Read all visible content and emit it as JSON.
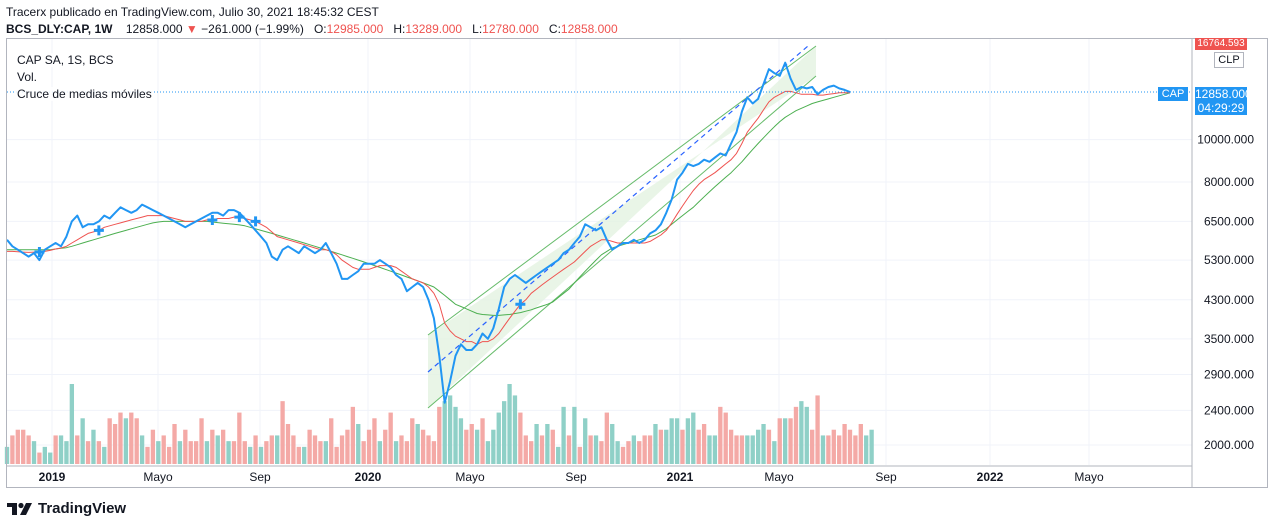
{
  "header": {
    "published": "Tracerx publicado en TradingView.com, Julio 30, 2021 18:45:32 CEST",
    "symbol": "BCS_DLY:CAP, 1W",
    "last": "12858.000",
    "arrow": "▼",
    "change": "−261.000 (−1.99%)",
    "o_label": "O:",
    "o_value": "12985.000",
    "h_label": "H:",
    "h_value": "13289.000",
    "l_label": "L:",
    "l_value": "12780.000",
    "c_label": "C:",
    "c_value": "12858.000"
  },
  "legend": {
    "line1": "CAP SA, 1S, BCS",
    "line2": "Vol.",
    "line3": "Cruce de medias móviles"
  },
  "price_scale": {
    "top_partial": "16764.593",
    "currency": "CLP",
    "price_tag_symbol": "CAP",
    "price_tag_value": "12858.000",
    "countdown": "04:29:29"
  },
  "footer": {
    "brand": "TradingView"
  },
  "colors": {
    "price": "#2196f3",
    "ma_fast": "#ef5350",
    "ma_slow": "#4caf50",
    "vol_up": "#8fd0c7",
    "vol_down": "#f4a9a6",
    "channel": "#e3f3e1",
    "cross": "#2196f3"
  },
  "chart_data": {
    "type": "line",
    "title": "CAP SA, 1S, BCS",
    "y_scale": "log",
    "ylim": [
      1800,
      17000
    ],
    "y_ticks": [
      2000,
      2400,
      2900,
      3500,
      4300,
      5300,
      6500,
      8000,
      10000
    ],
    "y_tick_labels": [
      "2000.000",
      "2400.000",
      "2900.000",
      "3500.000",
      "4300.000",
      "5300.000",
      "6500.000",
      "8000.000",
      "10000.000"
    ],
    "x_labels": [
      "2019",
      "Mayo",
      "Sep",
      "2020",
      "Mayo",
      "Sep",
      "2021",
      "Mayo",
      "Sep",
      "2022",
      "Mayo"
    ],
    "series": [
      {
        "name": "CAP",
        "values": [
          5900,
          5700,
          5600,
          5500,
          5400,
          5500,
          5300,
          5600,
          5700,
          5800,
          5700,
          6000,
          6500,
          6700,
          6300,
          6400,
          6400,
          6500,
          6700,
          6600,
          6800,
          7000,
          6900,
          6800,
          6900,
          7100,
          7000,
          6900,
          6800,
          6700,
          6600,
          6500,
          6400,
          6300,
          6400,
          6500,
          6600,
          6700,
          6800,
          6800,
          6700,
          6900,
          6900,
          6800,
          6600,
          6400,
          6200,
          6000,
          5800,
          5400,
          5300,
          5600,
          5700,
          5600,
          5500,
          5700,
          5600,
          5500,
          5600,
          5800,
          5500,
          5200,
          4800,
          4800,
          4900,
          5000,
          5200,
          5200,
          5200,
          5300,
          5200,
          5100,
          4900,
          4800,
          4500,
          4600,
          4700,
          4600,
          4300,
          3900,
          3200,
          2500,
          2800,
          3200,
          3400,
          3300,
          3300,
          3400,
          3600,
          3500,
          3700,
          4100,
          4600,
          4800,
          4900,
          4800,
          4700,
          4800,
          4900,
          5000,
          5100,
          5200,
          5300,
          5500,
          5600,
          5800,
          6000,
          6400,
          6300,
          6200,
          6300,
          5900,
          5600,
          5700,
          5800,
          5800,
          5900,
          5800,
          5900,
          6100,
          6200,
          6400,
          6800,
          7300,
          8100,
          8400,
          8800,
          8700,
          8800,
          9000,
          8900,
          9100,
          9300,
          9200,
          9800,
          10400,
          11600,
          12500,
          12100,
          12400,
          13400,
          14500,
          14200,
          14000,
          15000,
          13800,
          13000,
          13200,
          13100,
          13200,
          12700,
          13000,
          13200,
          13300,
          13100,
          13000,
          12858
        ]
      },
      {
        "name": "MA fast",
        "values": [
          5550,
          5550,
          5540,
          5530,
          5520,
          5530,
          5530,
          5550,
          5580,
          5620,
          5650,
          5700,
          5800,
          5900,
          6000,
          6100,
          6150,
          6200,
          6300,
          6350,
          6400,
          6450,
          6500,
          6550,
          6600,
          6650,
          6700,
          6700,
          6700,
          6700,
          6650,
          6600,
          6550,
          6500,
          6500,
          6500,
          6500,
          6550,
          6550,
          6600,
          6600,
          6600,
          6650,
          6650,
          6600,
          6550,
          6500,
          6400,
          6300,
          6150,
          6000,
          5950,
          5900,
          5850,
          5800,
          5750,
          5700,
          5650,
          5600,
          5600,
          5550,
          5450,
          5300,
          5200,
          5100,
          5050,
          5050,
          5050,
          5100,
          5150,
          5150,
          5150,
          5100,
          5000,
          4900,
          4800,
          4750,
          4700,
          4600,
          4450,
          4200,
          3800,
          3650,
          3550,
          3500,
          3450,
          3450,
          3400,
          3450,
          3450,
          3500,
          3600,
          3750,
          3900,
          4050,
          4200,
          4300,
          4450,
          4550,
          4650,
          4750,
          4850,
          4950,
          5050,
          5150,
          5250,
          5400,
          5550,
          5700,
          5800,
          5900,
          5900,
          5850,
          5800,
          5800,
          5800,
          5800,
          5800,
          5800,
          5850,
          5950,
          6050,
          6200,
          6450,
          6750,
          7050,
          7350,
          7650,
          7900,
          8100,
          8250,
          8400,
          8600,
          8800,
          9000,
          9300,
          9800,
          10400,
          10800,
          11200,
          11700,
          12200,
          12500,
          12700,
          12900,
          12900,
          12800,
          12700,
          12700,
          12700,
          12650,
          12650,
          12700,
          12750,
          12800,
          12800,
          12800
        ]
      },
      {
        "name": "MA slow",
        "values": [
          5600,
          5600,
          5600,
          5600,
          5600,
          5600,
          5600,
          5600,
          5600,
          5620,
          5640,
          5660,
          5700,
          5750,
          5800,
          5850,
          5900,
          5950,
          6000,
          6050,
          6100,
          6150,
          6200,
          6250,
          6300,
          6350,
          6400,
          6450,
          6480,
          6500,
          6500,
          6500,
          6500,
          6500,
          6500,
          6500,
          6500,
          6500,
          6480,
          6460,
          6440,
          6420,
          6400,
          6380,
          6350,
          6300,
          6250,
          6200,
          6150,
          6100,
          6050,
          6000,
          5950,
          5900,
          5850,
          5800,
          5750,
          5700,
          5650,
          5600,
          5550,
          5500,
          5450,
          5400,
          5350,
          5300,
          5250,
          5200,
          5150,
          5100,
          5050,
          5000,
          4950,
          4900,
          4850,
          4800,
          4750,
          4700,
          4650,
          4600,
          4500,
          4400,
          4300,
          4200,
          4150,
          4100,
          4050,
          4000,
          3980,
          3970,
          3960,
          3960,
          3970,
          3980,
          4000,
          4020,
          4050,
          4080,
          4120,
          4160,
          4200,
          4250,
          4350,
          4450,
          4550,
          4700,
          4850,
          5000,
          5150,
          5300,
          5450,
          5550,
          5650,
          5700,
          5750,
          5800,
          5850,
          5900,
          5950,
          6000,
          6050,
          6150,
          6250,
          6400,
          6550,
          6700,
          6850,
          7000,
          7200,
          7400,
          7600,
          7800,
          8000,
          8200,
          8400,
          8650,
          8900,
          9200,
          9500,
          9800,
          10100,
          10400,
          10700,
          11000,
          11250,
          11450,
          11650,
          11800,
          11950,
          12100,
          12200,
          12300,
          12400,
          12500,
          12600,
          12700,
          12800
        ]
      }
    ],
    "volume": {
      "name": "Vol.",
      "values": [
        3,
        5,
        6,
        6,
        5,
        4,
        2,
        3,
        2,
        5,
        5,
        4,
        14,
        5,
        8,
        4,
        6,
        4,
        3,
        8,
        7,
        9,
        8,
        9,
        8,
        5,
        3,
        6,
        4,
        5,
        3,
        7,
        4,
        6,
        4,
        4,
        8,
        4,
        6,
        5,
        6,
        4,
        4,
        9,
        4,
        3,
        5,
        3,
        4,
        5,
        5,
        11,
        7,
        5,
        3,
        3,
        6,
        5,
        4,
        4,
        8,
        3,
        5,
        6,
        10,
        7,
        4,
        6,
        8,
        4,
        6,
        9,
        4,
        5,
        4,
        8,
        7,
        6,
        5,
        4,
        10,
        11,
        12,
        10,
        8,
        6,
        7,
        6,
        8,
        4,
        6,
        9,
        11,
        14,
        12,
        9,
        5,
        4,
        7,
        5,
        7,
        6,
        3,
        10,
        5,
        10,
        3,
        8,
        5,
        5,
        4,
        9,
        7,
        4,
        3,
        4,
        5,
        4,
        5,
        5,
        7,
        6,
        6,
        8,
        8,
        6,
        8,
        9,
        6,
        7,
        5,
        5,
        10,
        9,
        6,
        5,
        5,
        5,
        5,
        6,
        7,
        6,
        4,
        8,
        8,
        8,
        10,
        11,
        10,
        6,
        12,
        5,
        5,
        6,
        5,
        7,
        6,
        5,
        7,
        5,
        6
      ],
      "up": [
        true,
        false,
        false,
        false,
        false,
        true,
        false,
        true,
        true,
        false,
        true,
        true,
        true,
        false,
        true,
        false,
        true,
        false,
        true,
        false,
        false,
        false,
        true,
        false,
        false,
        true,
        false,
        false,
        true,
        false,
        false,
        false,
        true,
        false,
        false,
        false,
        false,
        true,
        false,
        true,
        false,
        true,
        false,
        false,
        false,
        true,
        false,
        true,
        false,
        false,
        true,
        false,
        false,
        false,
        false,
        true,
        false,
        false,
        false,
        true,
        false,
        false,
        false,
        false,
        false,
        true,
        false,
        false,
        false,
        true,
        false,
        false,
        true,
        false,
        false,
        false,
        true,
        false,
        false,
        false,
        false,
        true,
        true,
        true,
        true,
        false,
        false,
        true,
        false,
        true,
        true,
        true,
        true,
        true,
        true,
        false,
        false,
        false,
        true,
        false,
        true,
        false,
        true,
        true,
        false,
        true,
        false,
        true,
        false,
        true,
        false,
        false,
        true,
        true,
        false,
        false,
        true,
        false,
        false,
        false,
        true,
        false,
        true,
        true,
        true,
        false,
        true,
        true,
        false,
        false,
        true,
        true,
        false,
        false,
        false,
        false,
        false,
        true,
        true,
        true,
        true,
        false,
        true,
        false,
        true,
        false,
        false,
        true,
        true,
        false,
        false,
        true,
        false,
        false,
        false,
        false,
        false,
        false,
        false,
        true,
        true
      ]
    }
  }
}
